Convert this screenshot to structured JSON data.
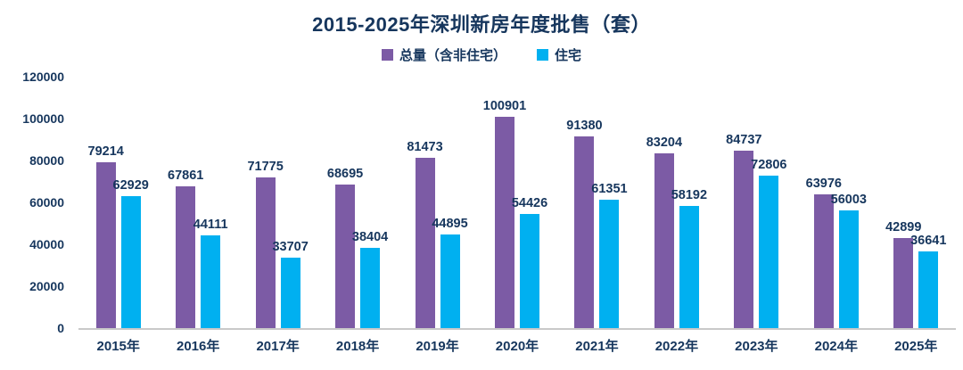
{
  "chart_data": {
    "type": "bar",
    "title": "2015-2025年深圳新房年度批售（套）",
    "categories": [
      "2015年",
      "2016年",
      "2017年",
      "2018年",
      "2019年",
      "2020年",
      "2021年",
      "2022年",
      "2023年",
      "2024年",
      "2025年"
    ],
    "series": [
      {
        "name": "总量（含非住宅）",
        "color": "#7C5BA5",
        "values": [
          79214,
          67861,
          71775,
          68695,
          81473,
          100901,
          91380,
          83204,
          84737,
          63976,
          42899
        ]
      },
      {
        "name": "住宅",
        "color": "#00B0F0",
        "values": [
          62929,
          44111,
          33707,
          38404,
          44895,
          54426,
          61351,
          58192,
          72806,
          56003,
          36641
        ]
      }
    ],
    "ylim": [
      0,
      120000
    ],
    "yticks": [
      0,
      20000,
      40000,
      60000,
      80000,
      100000,
      120000
    ],
    "grid": false,
    "legend_position": "top",
    "colors": {
      "label_text": "#16365D",
      "axis_line": "#C9C9C9"
    }
  }
}
